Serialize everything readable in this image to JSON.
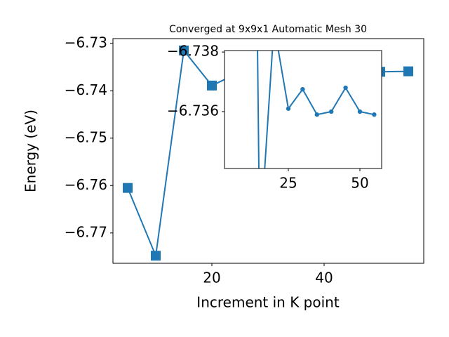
{
  "chart_data": {
    "type": "line",
    "title": "Converged at 9x9x1 Automatic Mesh 30",
    "xlabel": "Increment in K point",
    "ylabel": "Energy (eV)",
    "x": [
      5,
      10,
      15,
      20,
      25,
      30,
      35,
      40,
      45,
      50,
      55
    ],
    "series": [
      {
        "color": "#1f77b4",
        "values": [
          -6.7605,
          -6.7748,
          -6.7315,
          -6.7389,
          -6.7361,
          -6.73675,
          -6.7359,
          -6.736,
          -6.7368,
          -6.736,
          -6.7359
        ]
      }
    ],
    "xlim": [
      2.375,
      57.75
    ],
    "ylim": [
      -6.7764,
      -6.729
    ],
    "xticks": [
      20,
      40
    ],
    "yticks": [
      {
        "value": -6.73,
        "label": "−6.73"
      },
      {
        "value": -6.74,
        "label": "−6.74"
      },
      {
        "value": -6.75,
        "label": "−6.75"
      },
      {
        "value": -6.76,
        "label": "−6.76"
      },
      {
        "value": -6.77,
        "label": "−6.77"
      }
    ],
    "marker": "square",
    "inset": {
      "xlim": [
        2.7,
        57.6
      ],
      "ylim": [
        -6.73409,
        -6.73805
      ],
      "xticks": [
        25,
        50
      ],
      "yticks": [
        {
          "value": -6.738,
          "label": "−6.738"
        },
        {
          "value": -6.736,
          "label": "−6.736"
        }
      ],
      "marker": "circle"
    }
  }
}
